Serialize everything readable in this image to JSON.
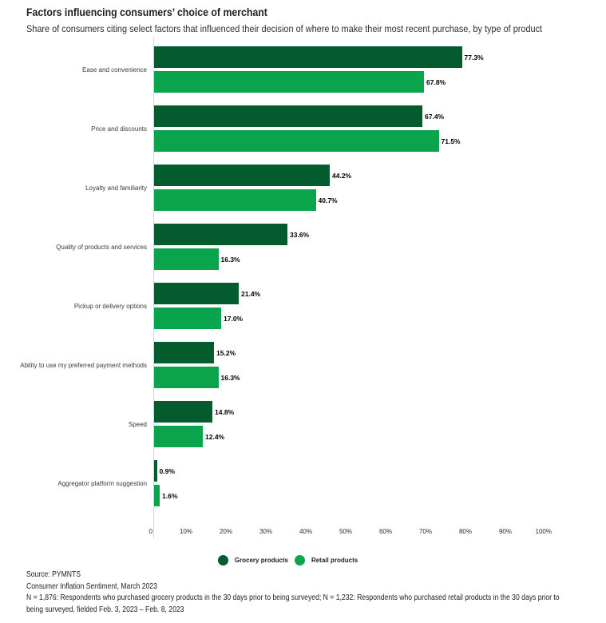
{
  "header": {
    "title": "Factors influencing consumers’ choice of merchant",
    "subtitle": "Share of consumers citing select factors that influenced their decision of where to make their most recent purchase, by type of product"
  },
  "chart_data": {
    "type": "bar",
    "orientation": "horizontal",
    "title": "Factors influencing consumers’ choice of merchant",
    "categories": [
      "Ease and convenience",
      "Price and discounts",
      "Loyalty and familiarity",
      "Quality of products and services",
      "Pickup or delivery options",
      "Ability to use my preferred payment methods",
      "Speed",
      "Aggregator platform suggestion"
    ],
    "series": [
      {
        "name": "Grocery products",
        "color": "#045B2D",
        "values": [
          77.3,
          67.4,
          44.2,
          33.6,
          21.4,
          15.2,
          14.8,
          0.9
        ]
      },
      {
        "name": "Retail products",
        "color": "#09A44C",
        "values": [
          67.8,
          71.5,
          40.7,
          16.3,
          17.0,
          16.3,
          12.4,
          1.6
        ]
      }
    ],
    "value_suffix": "%",
    "x_ticks": [
      "0",
      "10%",
      "20%",
      "30%",
      "40%",
      "50%",
      "60%",
      "70%",
      "80%",
      "90%",
      "100%"
    ],
    "x_tick_values": [
      0,
      10,
      20,
      30,
      40,
      50,
      60,
      70,
      80,
      90,
      100
    ],
    "xlim": [
      0,
      100
    ],
    "grid": false,
    "legend_position": "bottom",
    "bar_value_labels": true
  },
  "footer": {
    "source": "Source: PYMNTS",
    "report": "Consumer Inflation Sentiment, March 2023",
    "note_line1": "N = 1,876: Respondents who purchased grocery products in the 30 days prior to being surveyed; N = 1,232: Respondents who purchased retail products in the 30 days prior to",
    "note_line2": "being surveyed, fielded Feb. 3, 2023 – Feb. 8, 2023"
  }
}
